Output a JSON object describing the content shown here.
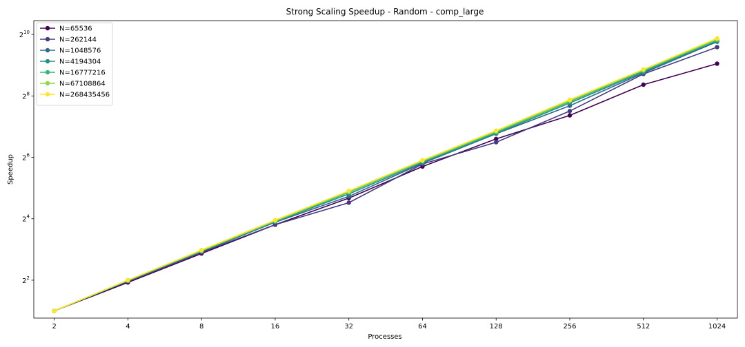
{
  "chart_data": {
    "type": "line",
    "title": "Strong Scaling Speedup - Random - comp_large",
    "xlabel": "Processes",
    "ylabel": "Speedup",
    "x_scale": "log2",
    "y_scale": "log2",
    "x": [
      2,
      4,
      8,
      16,
      32,
      64,
      128,
      256,
      512,
      1024
    ],
    "x_tick_labels": [
      "2",
      "4",
      "8",
      "16",
      "32",
      "64",
      "128",
      "256",
      "512",
      "1024"
    ],
    "y_tick_base": "2",
    "y_ticks": [
      {
        "value": 4,
        "exp": "2"
      },
      {
        "value": 16,
        "exp": "4"
      },
      {
        "value": 64,
        "exp": "6"
      },
      {
        "value": 256,
        "exp": "8"
      },
      {
        "value": 1024,
        "exp": "10"
      }
    ],
    "ylim": [
      1.7,
      1400
    ],
    "grid": false,
    "legend_position": "top-left",
    "series": [
      {
        "name": "N=65536",
        "color": "#440154",
        "values": [
          2,
          3.8,
          7.3,
          14.0,
          25.5,
          52.0,
          97.0,
          165.0,
          330.0,
          530.0
        ]
      },
      {
        "name": "N=262144",
        "color": "#443983",
        "values": [
          2,
          3.9,
          7.5,
          14.0,
          23.0,
          55.0,
          90.0,
          182.0,
          420.0,
          770.0
        ]
      },
      {
        "name": "N=1048576",
        "color": "#31688e",
        "values": [
          2,
          3.95,
          7.6,
          14.8,
          26.5,
          56.0,
          109.0,
          205.0,
          430.0,
          870.0
        ]
      },
      {
        "name": "N=4194304",
        "color": "#21918c",
        "values": [
          2,
          3.95,
          7.7,
          15.0,
          28.0,
          57.0,
          110.0,
          218.0,
          440.0,
          890.0
        ]
      },
      {
        "name": "N=16777216",
        "color": "#35b779",
        "values": [
          2,
          3.95,
          7.75,
          15.1,
          29.0,
          58.5,
          113.0,
          225.0,
          450.0,
          900.0
        ]
      },
      {
        "name": "N=67108864",
        "color": "#90d743",
        "values": [
          2,
          4.0,
          7.8,
          15.3,
          29.5,
          59.0,
          115.0,
          230.0,
          460.0,
          920.0
        ]
      },
      {
        "name": "N=268435456",
        "color": "#fde725",
        "values": [
          2,
          4.0,
          7.9,
          15.5,
          30.0,
          60.0,
          117.0,
          235.0,
          465.0,
          940.0
        ]
      }
    ]
  }
}
